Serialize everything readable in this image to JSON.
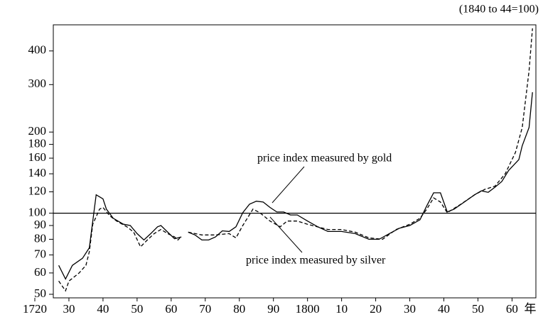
{
  "chart_data": {
    "type": "line",
    "subtitle": "(1840 to 44=100)",
    "x_label": "年",
    "log_y": true,
    "hline": 100,
    "xlim": [
      1720,
      1867
    ],
    "ylim": [
      48.5,
      500
    ],
    "xticks": [
      {
        "value": 1720,
        "label": "1720"
      },
      {
        "value": 1730,
        "label": "30"
      },
      {
        "value": 1740,
        "label": "40"
      },
      {
        "value": 1750,
        "label": "50"
      },
      {
        "value": 1760,
        "label": "60"
      },
      {
        "value": 1770,
        "label": "70"
      },
      {
        "value": 1780,
        "label": "80"
      },
      {
        "value": 1790,
        "label": "90"
      },
      {
        "value": 1800,
        "label": "1800"
      },
      {
        "value": 1810,
        "label": "10"
      },
      {
        "value": 1820,
        "label": "20"
      },
      {
        "value": 1830,
        "label": "30"
      },
      {
        "value": 1840,
        "label": "40"
      },
      {
        "value": 1850,
        "label": "50"
      },
      {
        "value": 1860,
        "label": "60"
      }
    ],
    "yticks": [
      50,
      60,
      70,
      80,
      90,
      100,
      120,
      140,
      160,
      180,
      200,
      300,
      400
    ],
    "series": [
      {
        "name": "price index measured by gold",
        "color": "#000000",
        "dash": false,
        "x": [
          1727,
          1729,
          1731,
          1734,
          1736,
          1738,
          1740,
          1741,
          1743,
          1746,
          1748,
          1750,
          1752,
          1754,
          1756,
          1757,
          1759,
          1761,
          1763,
          1764,
          1765,
          1767,
          1769,
          1771,
          1773,
          1775,
          1777,
          1779,
          1781,
          1783,
          1785,
          1787,
          1789,
          1791,
          1793,
          1795,
          1797,
          1800,
          1803,
          1806,
          1810,
          1814,
          1818,
          1821,
          1824,
          1827,
          1830,
          1833,
          1835,
          1837,
          1839,
          1841,
          1843,
          1846,
          1849,
          1851,
          1853,
          1855,
          1857,
          1859,
          1862,
          1863,
          1865,
          1866
        ],
        "values": [
          64,
          57,
          64,
          68,
          74.4,
          117,
          113,
          103.5,
          95.7,
          91,
          90,
          84,
          79.5,
          84,
          89,
          90,
          85,
          80.4,
          81.6,
          null,
          85,
          83,
          79.5,
          79.5,
          81.6,
          86,
          85.5,
          89,
          100.4,
          108,
          110.8,
          110,
          105,
          101,
          101,
          98.5,
          98.5,
          93.5,
          89,
          85.5,
          85.5,
          84,
          80,
          80,
          84,
          88,
          90,
          94.5,
          106.5,
          119,
          119,
          101,
          103.5,
          110,
          117,
          121,
          119.5,
          124.8,
          131,
          144,
          158,
          178,
          208,
          281
        ]
      },
      {
        "name": "price index measured by silver",
        "color": "#000000",
        "dash": true,
        "x": [
          1727,
          1729,
          1730,
          1733,
          1735,
          1736,
          1737,
          1739,
          1740,
          1742,
          1744,
          1747,
          1749,
          1751,
          1753,
          1755,
          1757,
          1759,
          1761,
          1762,
          1763,
          1764,
          1765,
          1769,
          1773,
          1777,
          1779,
          1781,
          1784,
          1786,
          1789,
          1792,
          1794,
          1797,
          1800,
          1806,
          1810,
          1814,
          1818,
          1822,
          1826,
          1830,
          1833,
          1835,
          1837,
          1839,
          1841,
          1845,
          1849,
          1852,
          1855,
          1858,
          1861,
          1863,
          1865,
          1866
        ],
        "values": [
          56,
          51.5,
          56,
          60,
          64,
          72,
          91,
          103.5,
          105,
          97.7,
          93.5,
          89,
          85,
          75,
          79.5,
          84,
          87,
          84,
          81.6,
          79.5,
          82,
          null,
          85,
          83,
          83,
          84,
          81,
          90,
          103.5,
          100.4,
          93.5,
          89,
          93.5,
          93.5,
          91,
          87,
          87,
          85,
          81,
          80,
          87,
          91,
          95.7,
          103.5,
          114,
          110,
          100.4,
          108,
          117,
          122.6,
          126,
          140,
          168,
          208,
          338,
          485
        ]
      }
    ]
  }
}
